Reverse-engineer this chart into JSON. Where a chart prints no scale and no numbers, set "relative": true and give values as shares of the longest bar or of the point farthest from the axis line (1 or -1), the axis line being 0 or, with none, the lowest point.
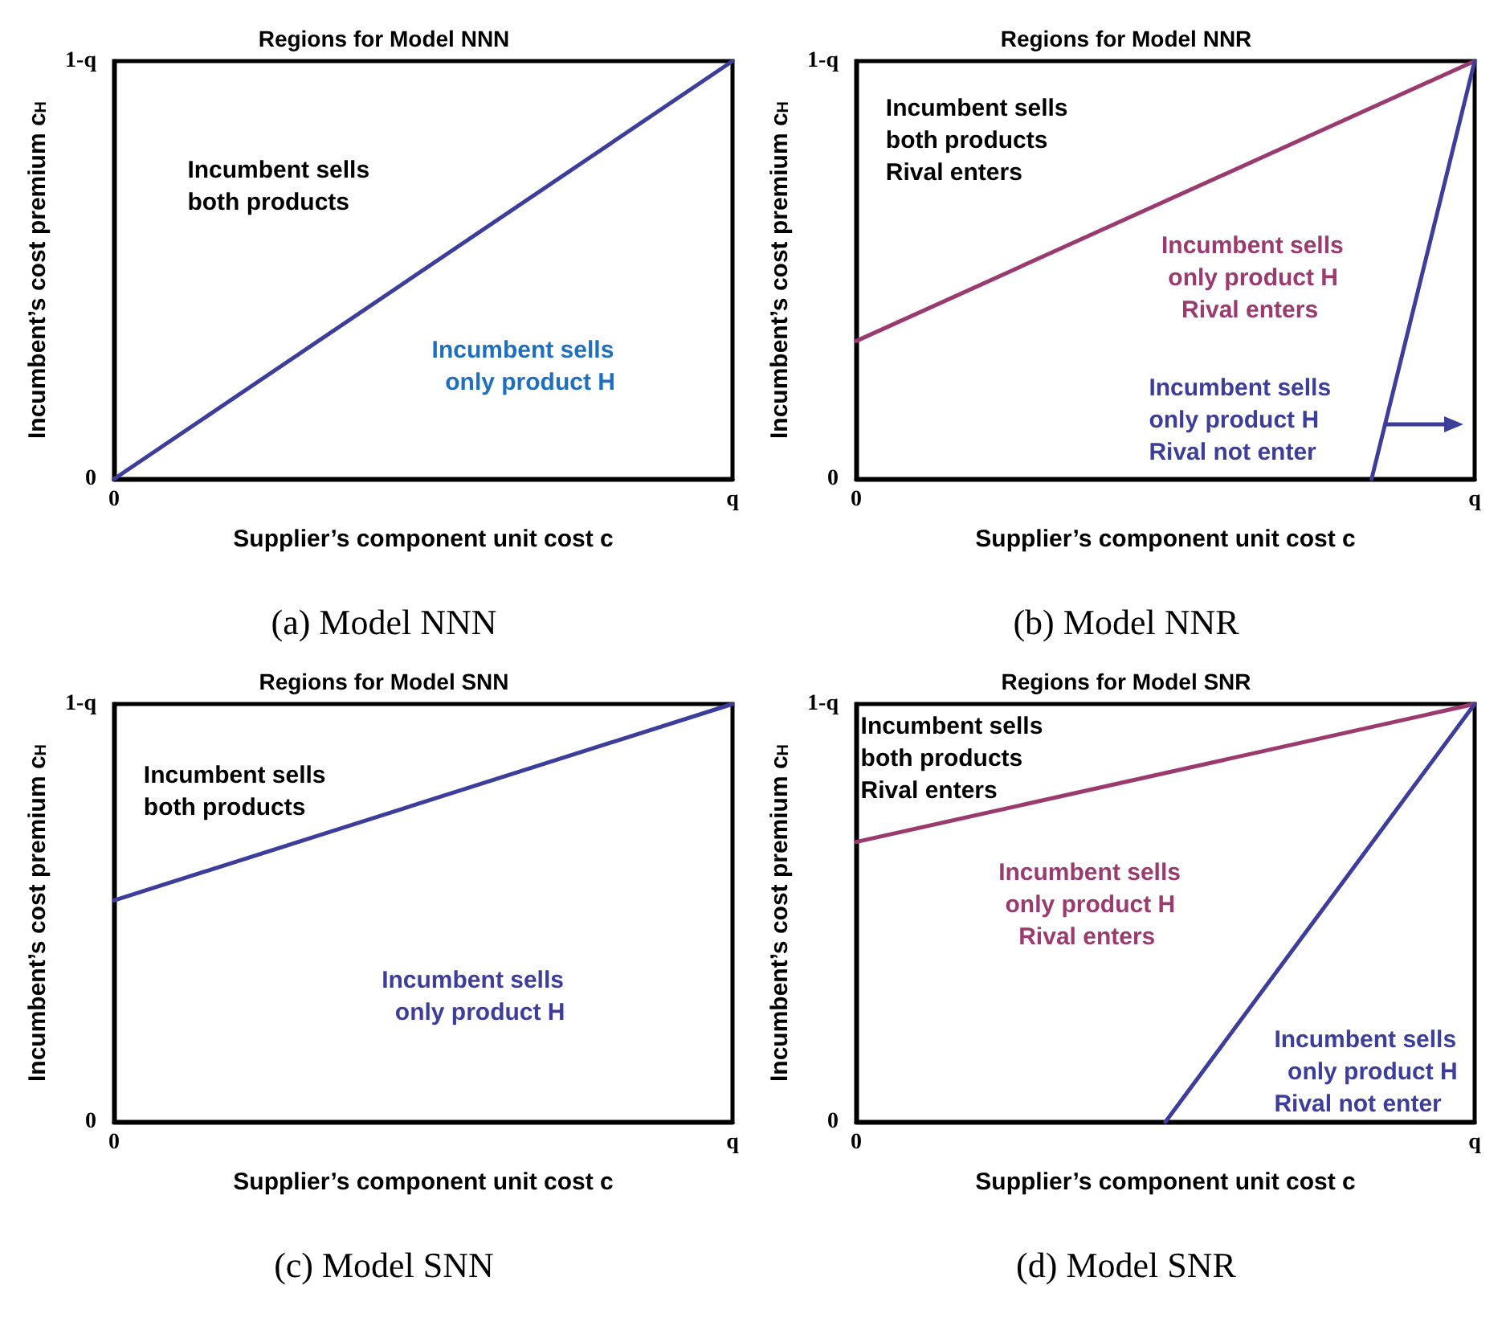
{
  "chart_data": [
    {
      "type": "line",
      "relative": true,
      "title": "Regions for Model NNN",
      "xlabel": "Supplier’s component unit cost c",
      "ylabel": "Incumbent’s cost premium c$_{H}$",
      "categories": [
        "0",
        null,
        null,
        null,
        null,
        null,
        null,
        null,
        null,
        null,
        null,
        null,
        "q"
      ],
      "grid": false,
      "marker": "none",
      "line_style": "solid",
      "series": [
        {
          "color": "#3d3d9c",
          "values": [
            0,
            null,
            null,
            null,
            null,
            null,
            null,
            null,
            null,
            null,
            null,
            null,
            1
          ]
        }
      ],
      "annotations": [
        "Incumbent sells\nboth products",
        "Incumbent sells\n  only product H",
        "1-q",
        "0",
        "(a) Model NNN"
      ]
    },
    {
      "type": "line",
      "relative": true,
      "title": "Regions for Model NNR",
      "xlabel": "Supplier’s component unit cost c",
      "ylabel": "Incumbent’s cost premium c$_{H}$",
      "categories": [
        "0",
        null,
        null,
        null,
        null,
        null,
        null,
        null,
        null,
        null,
        null,
        null,
        "q"
      ],
      "grid": false,
      "marker": "none",
      "line_style": "solid",
      "series": [
        {
          "color": "#9b3a6e",
          "values": [
            0.33,
            null,
            null,
            null,
            null,
            null,
            null,
            null,
            null,
            null,
            null,
            null,
            1
          ]
        },
        {
          "color": "#3d3d9c",
          "values": [
            null,
            null,
            null,
            null,
            null,
            null,
            null,
            null,
            null,
            null,
            0,
            null,
            1
          ]
        }
      ],
      "annotations": [
        "Incumbent sells\nboth products\nRival enters",
        "Incumbent sells\n only product H\n   Rival enters",
        "Incumbent sells\nonly product H\nRival not enter",
        "1-q",
        "0",
        "(b) Model NNR"
      ]
    },
    {
      "type": "line",
      "relative": true,
      "title": "Regions for Model SNN",
      "xlabel": "Supplier’s component unit cost c",
      "ylabel": "Incumbent’s cost premium c$_{H}$",
      "categories": [
        "0",
        null,
        null,
        null,
        null,
        null,
        null,
        null,
        null,
        null,
        null,
        null,
        "q"
      ],
      "grid": false,
      "marker": "none",
      "line_style": "solid",
      "series": [
        {
          "color": "#3d3d9c",
          "values": [
            0.53,
            null,
            null,
            null,
            null,
            null,
            null,
            null,
            null,
            null,
            null,
            null,
            1
          ]
        }
      ],
      "annotations": [
        "Incumbent sells\nboth products",
        "Incumbent sells\n  only product H",
        "1-q",
        "0",
        "(c) Model SNN"
      ]
    },
    {
      "type": "line",
      "relative": true,
      "title": "Regions for Model SNR",
      "xlabel": "Supplier’s component unit cost c",
      "ylabel": "Incumbent’s cost premium c$_{H}$",
      "categories": [
        "0",
        null,
        null,
        null,
        null,
        null,
        null,
        null,
        null,
        null,
        null,
        null,
        "q"
      ],
      "grid": false,
      "marker": "none",
      "line_style": "solid",
      "series": [
        {
          "color": "#9b3a6e",
          "values": [
            0.67,
            null,
            null,
            null,
            null,
            null,
            null,
            null,
            null,
            null,
            null,
            null,
            1
          ]
        },
        {
          "color": "#3d3d9c",
          "values": [
            null,
            null,
            null,
            null,
            null,
            null,
            0,
            null,
            null,
            null,
            null,
            null,
            1
          ]
        }
      ],
      "annotations": [
        "Incumbent sells\nboth products\nRival enters",
        "Incumbent sells\n only product H\n   Rival enters",
        "Incumbent sells\n  only product H\nRival not enter",
        "1-q",
        "0",
        "(d) Model SNR"
      ]
    }
  ]
}
